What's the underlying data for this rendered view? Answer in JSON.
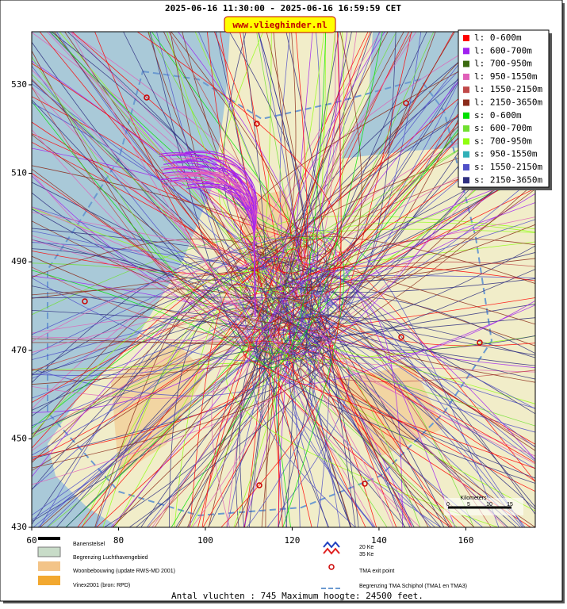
{
  "header": {
    "title": "2025-06-16 11:30:00 - 2025-06-16 16:59:59 CET",
    "badge": "www.vlieghinder.nl"
  },
  "map": {
    "xlim": [
      60,
      176
    ],
    "ylim": [
      430,
      542
    ],
    "xticks": [
      60,
      80,
      100,
      120,
      140,
      160
    ],
    "yticks": [
      430,
      450,
      470,
      490,
      510,
      530
    ]
  },
  "legend": [
    {
      "name": "l: 0-600m",
      "color": "#ff0000"
    },
    {
      "name": "l: 600-700m",
      "color": "#a020f0"
    },
    {
      "name": "l: 700-950m",
      "color": "#3a6a10"
    },
    {
      "name": "l: 950-1550m",
      "color": "#e060b8"
    },
    {
      "name": "l: 1550-2150m",
      "color": "#c04848"
    },
    {
      "name": "l: 2150-3650m",
      "color": "#8b2a1a"
    },
    {
      "name": "s: 0-600m",
      "color": "#00e000"
    },
    {
      "name": "s: 600-700m",
      "color": "#70e030"
    },
    {
      "name": "s: 700-950m",
      "color": "#90ff10"
    },
    {
      "name": "s: 950-1550m",
      "color": "#30b0b8"
    },
    {
      "name": "s: 1550-2150m",
      "color": "#5050c8"
    },
    {
      "name": "s: 2150-3650m",
      "color": "#303080"
    }
  ],
  "scale": {
    "title": "Kilometers",
    "labels": [
      "0",
      "5",
      "10",
      "15"
    ]
  },
  "key": {
    "runways": "Banenstelsel",
    "airport": "Begrenzing Luchthavengebied",
    "housing": "Woonbebouwing (update RWS-MD 2001)",
    "vinex": "Vinex2001 (bron: RPD)",
    "ke20": "20 Ke",
    "ke35": "35 Ke",
    "tma_exit": "TMA exit point",
    "tma_border": "Begrenzing TMA Schiphol  (TMA1 en TMA3)"
  },
  "footer": "Antal vluchten : 745 Maximum hoogte: 24500 feet."
}
